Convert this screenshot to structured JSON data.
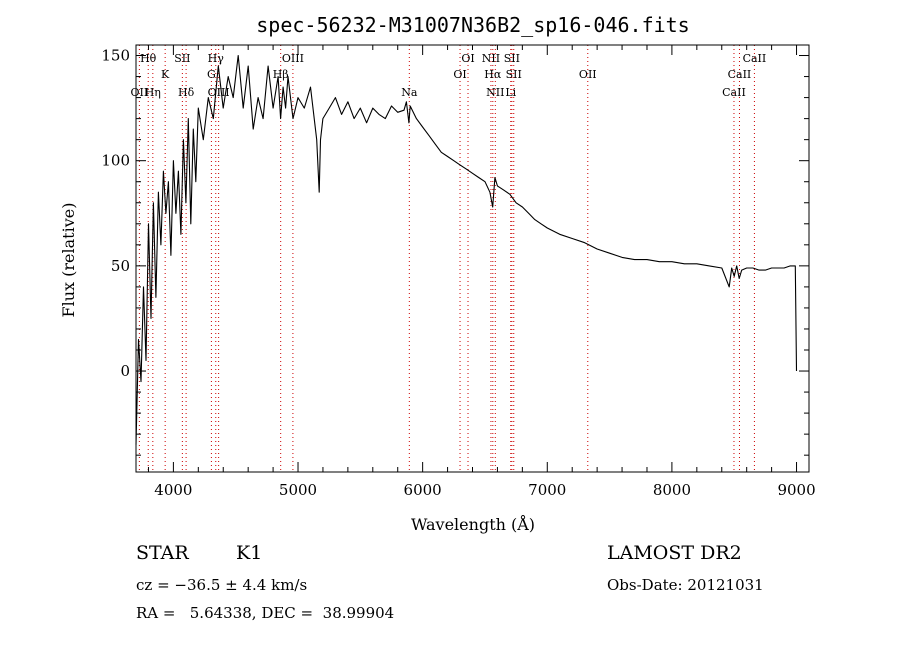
{
  "title": "spec-56232-M31007N36B2_sp16-046.fits",
  "chart_data": {
    "type": "line",
    "xlabel": "Wavelength (Å)",
    "ylabel": "Flux (relative)",
    "xlim": [
      3700,
      9100
    ],
    "ylim": [
      -48,
      155
    ],
    "x_ticks": [
      4000,
      5000,
      6000,
      7000,
      8000,
      9000
    ],
    "y_ticks": [
      0,
      50,
      100,
      150
    ],
    "grid": false,
    "series": [
      {
        "x": [
          3700,
          3720,
          3740,
          3760,
          3780,
          3800,
          3820,
          3840,
          3860,
          3880,
          3900,
          3920,
          3940,
          3960,
          3980,
          4000,
          4020,
          4040,
          4060,
          4080,
          4100,
          4120,
          4140,
          4160,
          4180,
          4200,
          4240,
          4280,
          4320,
          4360,
          4400,
          4440,
          4480,
          4520,
          4560,
          4600,
          4640,
          4680,
          4720,
          4760,
          4800,
          4840,
          4860,
          4880,
          4900,
          4920,
          4960,
          5000,
          5050,
          5100,
          5150,
          5170,
          5180,
          5200,
          5250,
          5300,
          5350,
          5400,
          5450,
          5500,
          5550,
          5600,
          5650,
          5700,
          5750,
          5800,
          5850,
          5870,
          5890,
          5900,
          5950,
          6000,
          6050,
          6100,
          6150,
          6200,
          6250,
          6300,
          6350,
          6400,
          6450,
          6500,
          6540,
          6562,
          6580,
          6600,
          6650,
          6700,
          6750,
          6800,
          6850,
          6900,
          6950,
          7000,
          7100,
          7200,
          7300,
          7400,
          7500,
          7600,
          7700,
          7800,
          7900,
          8000,
          8100,
          8200,
          8300,
          8400,
          8460,
          8480,
          8500,
          8520,
          8540,
          8560,
          8600,
          8650,
          8700,
          8750,
          8800,
          8850,
          8900,
          8950,
          8990,
          9000
        ],
        "values": [
          -35,
          15,
          -5,
          40,
          5,
          70,
          25,
          80,
          35,
          85,
          60,
          95,
          75,
          90,
          55,
          100,
          75,
          95,
          65,
          110,
          80,
          120,
          70,
          115,
          90,
          125,
          110,
          130,
          120,
          145,
          125,
          140,
          130,
          150,
          125,
          145,
          115,
          130,
          120,
          145,
          125,
          140,
          120,
          135,
          125,
          140,
          120,
          130,
          125,
          135,
          110,
          85,
          110,
          120,
          125,
          130,
          122,
          128,
          120,
          125,
          118,
          125,
          122,
          120,
          126,
          123,
          124,
          128,
          118,
          126,
          120,
          116,
          112,
          108,
          104,
          102,
          100,
          98,
          96,
          94,
          92,
          90,
          85,
          78,
          92,
          88,
          86,
          84,
          80,
          78,
          75,
          72,
          70,
          68,
          65,
          63,
          61,
          58,
          56,
          54,
          53,
          53,
          52,
          52,
          51,
          51,
          50,
          49,
          40,
          49,
          45,
          50,
          44,
          48,
          49,
          49,
          48,
          48,
          49,
          49,
          49,
          50,
          50,
          0
        ]
      }
    ],
    "spectral_lines": [
      {
        "name": "Hθ",
        "x": 3798,
        "row": 0
      },
      {
        "name": "OII",
        "x": 3727,
        "row": 2
      },
      {
        "name": "Hη",
        "x": 3835,
        "row": 2
      },
      {
        "name": "K",
        "x": 3934,
        "row": 1
      },
      {
        "name": "SII",
        "x": 4072,
        "row": 0
      },
      {
        "name": "Hδ",
        "x": 4102,
        "row": 2
      },
      {
        "name": "Hγ",
        "x": 4340,
        "row": 0
      },
      {
        "name": "G",
        "x": 4305,
        "row": 1
      },
      {
        "name": "OIII",
        "x": 4363,
        "row": 2
      },
      {
        "name": "OIII",
        "x": 4959,
        "row": 0
      },
      {
        "name": "Hβ",
        "x": 4861,
        "row": 1
      },
      {
        "name": "Na",
        "x": 5893,
        "row": 2
      },
      {
        "name": "OI",
        "x": 6364,
        "row": 0
      },
      {
        "name": "OI",
        "x": 6300,
        "row": 1
      },
      {
        "name": "NII",
        "x": 6548,
        "row": 0
      },
      {
        "name": "SII",
        "x": 6716,
        "row": 0
      },
      {
        "name": "Hα",
        "x": 6563,
        "row": 1
      },
      {
        "name": "SII",
        "x": 6731,
        "row": 1
      },
      {
        "name": "NII",
        "x": 6583,
        "row": 2
      },
      {
        "name": "Li",
        "x": 6707,
        "row": 2
      },
      {
        "name": "OII",
        "x": 7325,
        "row": 1
      },
      {
        "name": "CaII",
        "x": 8662,
        "row": 0
      },
      {
        "name": "CaII",
        "x": 8542,
        "row": 1
      },
      {
        "name": "CaII",
        "x": 8498,
        "row": 2
      }
    ],
    "colors": {
      "line": "#000000",
      "marker": "#cc0000"
    }
  },
  "footer": {
    "class_label": "STAR",
    "subclass": "K1",
    "survey": "LAMOST DR2",
    "cz": "cz = −36.5 ± 4.4 km/s",
    "obs_date": "Obs-Date: 20121031",
    "coords": "RA =   5.64338, DEC =  38.99904"
  }
}
